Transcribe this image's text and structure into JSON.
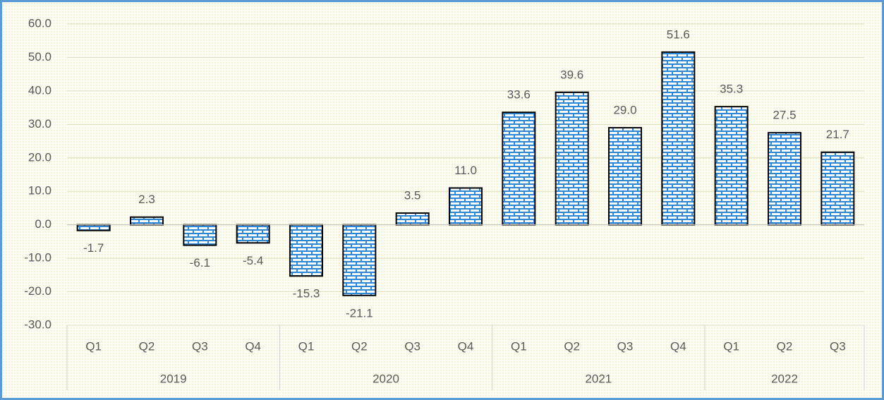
{
  "chart_data": {
    "type": "bar",
    "groups": [
      {
        "name": "2019",
        "categories": [
          "Q1",
          "Q2",
          "Q3",
          "Q4"
        ],
        "values": [
          -1.7,
          2.3,
          -6.1,
          -5.4
        ],
        "value_labels": [
          "-1.7",
          "2.3",
          "-6.1",
          "-5.4"
        ]
      },
      {
        "name": "2020",
        "categories": [
          "Q1",
          "Q2",
          "Q3",
          "Q4"
        ],
        "values": [
          -15.3,
          -21.1,
          3.5,
          11.0
        ],
        "value_labels": [
          "-15.3",
          "-21.1",
          "3.5",
          "11.0"
        ]
      },
      {
        "name": "2021",
        "categories": [
          "Q1",
          "Q2",
          "Q3",
          "Q4"
        ],
        "values": [
          33.6,
          39.6,
          29.0,
          51.6
        ],
        "value_labels": [
          "33.6",
          "39.6",
          "29.0",
          "51.6"
        ]
      },
      {
        "name": "2022",
        "categories": [
          "Q1",
          "Q2",
          "Q3"
        ],
        "values": [
          35.3,
          27.5,
          21.7
        ],
        "value_labels": [
          "35.3",
          "27.5",
          "21.7"
        ]
      }
    ],
    "color": "#2e86d6",
    "ylim": [
      -30,
      60
    ],
    "yticks": [
      {
        "value": -30,
        "label": "-30.0"
      },
      {
        "value": -20,
        "label": "-20.0"
      },
      {
        "value": -10,
        "label": "-10.0"
      },
      {
        "value": 0,
        "label": "0.0"
      },
      {
        "value": 10,
        "label": "10.0"
      },
      {
        "value": 20,
        "label": "20.0"
      },
      {
        "value": 30,
        "label": "30.0"
      },
      {
        "value": 40,
        "label": "40.0"
      },
      {
        "value": 50,
        "label": "50.0"
      },
      {
        "value": 60,
        "label": "60.0"
      }
    ],
    "grid": true
  }
}
